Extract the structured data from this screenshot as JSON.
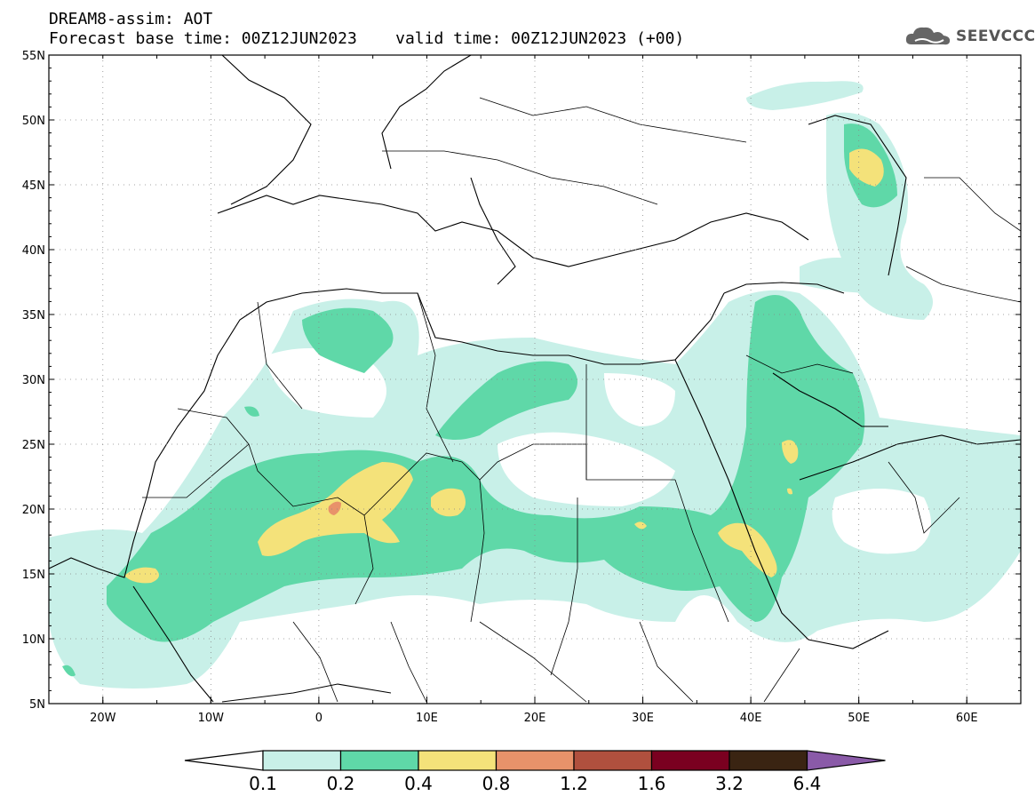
{
  "title": {
    "line1": "DREAM8-assim: AOT",
    "line2": "Forecast base time: 00Z12JUN2023    valid time: 00Z12JUN2023 (+00)"
  },
  "logo": {
    "text": "SEEVCCC",
    "icon": "cloud-logo-icon"
  },
  "map": {
    "lon_range": [
      -25,
      65
    ],
    "lat_range": [
      5,
      55
    ],
    "lat_ticks": [
      "55N",
      "50N",
      "45N",
      "40N",
      "35N",
      "30N",
      "25N",
      "20N",
      "15N",
      "10N",
      "5N"
    ],
    "lon_ticks": [
      "20W",
      "10W",
      "0",
      "10E",
      "20E",
      "30E",
      "40E",
      "50E",
      "60E"
    ],
    "grid": true,
    "grid_style": "dotted"
  },
  "colorbar": {
    "labels": [
      "0.1",
      "0.2",
      "0.4",
      "0.8",
      "1.2",
      "1.6",
      "3.2",
      "6.4"
    ],
    "colors": [
      "#ffffff",
      "#c8f0e8",
      "#5fd8a8",
      "#f4e27a",
      "#e8926a",
      "#b0503e",
      "#7a0020",
      "#3a2412",
      "#8a5aa8"
    ],
    "extend": "both"
  },
  "palette": {
    "c1": "#c8f0e8",
    "c2": "#5fd8a8",
    "c3": "#f4e27a",
    "c4": "#e8926a",
    "c5": "#b0503e",
    "border": "#000000"
  }
}
